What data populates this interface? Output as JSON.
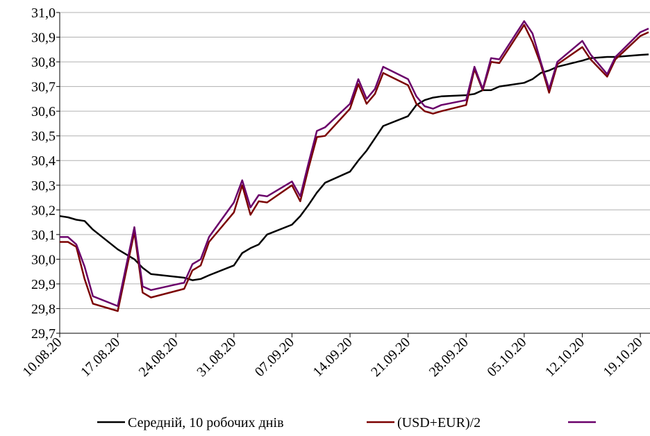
{
  "chart_data": {
    "type": "line",
    "x": [
      "10.08.20",
      "11.08.20",
      "12.08.20",
      "13.08.20",
      "14.08.20",
      "17.08.20",
      "18.08.20",
      "19.08.20",
      "20.08.20",
      "21.08.20",
      "25.08.20",
      "26.08.20",
      "27.08.20",
      "28.08.20",
      "31.08.20",
      "01.09.20",
      "02.09.20",
      "03.09.20",
      "04.09.20",
      "07.09.20",
      "08.09.20",
      "09.09.20",
      "10.09.20",
      "11.09.20",
      "14.09.20",
      "15.09.20",
      "16.09.20",
      "17.09.20",
      "18.09.20",
      "21.09.20",
      "22.09.20",
      "23.09.20",
      "24.09.20",
      "25.09.20",
      "28.09.20",
      "29.09.20",
      "30.09.20",
      "01.10.20",
      "02.10.20",
      "05.10.20",
      "06.10.20",
      "07.10.20",
      "08.10.20",
      "09.10.20",
      "12.10.20",
      "13.10.20",
      "15.10.20",
      "16.10.20",
      "19.10.20",
      "20.10.20"
    ],
    "series": [
      {
        "name": "Середній, 10 робочих днів",
        "color": "#000000",
        "values": [
          30.175,
          30.17,
          30.16,
          30.155,
          30.12,
          30.04,
          30.02,
          30.0,
          29.965,
          29.94,
          29.925,
          29.915,
          29.92,
          29.935,
          29.975,
          30.025,
          30.045,
          30.06,
          30.1,
          30.14,
          30.175,
          30.22,
          30.27,
          30.31,
          30.355,
          30.4,
          30.44,
          30.49,
          30.54,
          30.58,
          30.625,
          30.645,
          30.655,
          30.66,
          30.665,
          30.67,
          30.685,
          30.685,
          30.7,
          30.715,
          30.73,
          30.755,
          30.765,
          30.78,
          30.805,
          30.815,
          30.82,
          30.82,
          30.828,
          30.83
        ]
      },
      {
        "name": "(USD+EUR)/2",
        "color": "#7b0000",
        "values": [
          30.07,
          30.07,
          30.05,
          29.92,
          29.82,
          29.79,
          29.95,
          30.11,
          29.865,
          29.845,
          29.88,
          29.955,
          29.975,
          30.07,
          30.19,
          30.3,
          30.18,
          30.235,
          30.23,
          30.3,
          30.235,
          30.37,
          30.495,
          30.5,
          30.61,
          30.71,
          30.63,
          30.67,
          30.755,
          30.705,
          30.63,
          30.6,
          30.59,
          30.6,
          30.625,
          30.77,
          30.685,
          30.8,
          30.795,
          30.95,
          30.88,
          30.79,
          30.675,
          30.79,
          30.86,
          30.81,
          30.74,
          30.81,
          30.905,
          30.92
        ]
      },
      {
        "color": "#6a006a",
        "values": [
          30.09,
          30.09,
          30.06,
          29.97,
          29.85,
          29.81,
          29.97,
          30.13,
          29.89,
          29.875,
          29.905,
          29.98,
          30.0,
          30.09,
          30.23,
          30.32,
          30.21,
          30.26,
          30.255,
          30.315,
          30.255,
          30.39,
          30.52,
          30.535,
          30.63,
          30.73,
          30.65,
          30.69,
          30.78,
          30.73,
          30.66,
          30.62,
          30.61,
          30.625,
          30.645,
          30.78,
          30.69,
          30.815,
          30.81,
          30.965,
          30.915,
          30.8,
          30.69,
          30.8,
          30.885,
          30.83,
          30.75,
          30.82,
          30.92,
          30.935
        ]
      }
    ],
    "xlim": [
      "10.08.20",
      "20.10.20"
    ],
    "xticks": [
      "10.08.20",
      "17.08.20",
      "24.08.20",
      "31.08.20",
      "07.09.20",
      "14.09.20",
      "21.09.20",
      "28.09.20",
      "05.10.20",
      "12.10.20",
      "19.10.20"
    ],
    "ylim": [
      29.7,
      31.0
    ],
    "yticks": [
      {
        "value": 29.7,
        "label": "29,7"
      },
      {
        "value": 29.8,
        "label": "29,8"
      },
      {
        "value": 29.9,
        "label": "29,9"
      },
      {
        "value": 30.0,
        "label": "30,0"
      },
      {
        "value": 30.1,
        "label": "30,1"
      },
      {
        "value": 30.2,
        "label": "30,2"
      },
      {
        "value": 30.3,
        "label": "30,3"
      },
      {
        "value": 30.4,
        "label": "30,4"
      },
      {
        "value": 30.5,
        "label": "30,5"
      },
      {
        "value": 30.6,
        "label": "30,6"
      },
      {
        "value": 30.7,
        "label": "30,7"
      },
      {
        "value": 30.8,
        "label": "30,8"
      },
      {
        "value": 30.9,
        "label": "30,9"
      },
      {
        "value": 31.0,
        "label": "31,0"
      }
    ],
    "grid": true
  }
}
